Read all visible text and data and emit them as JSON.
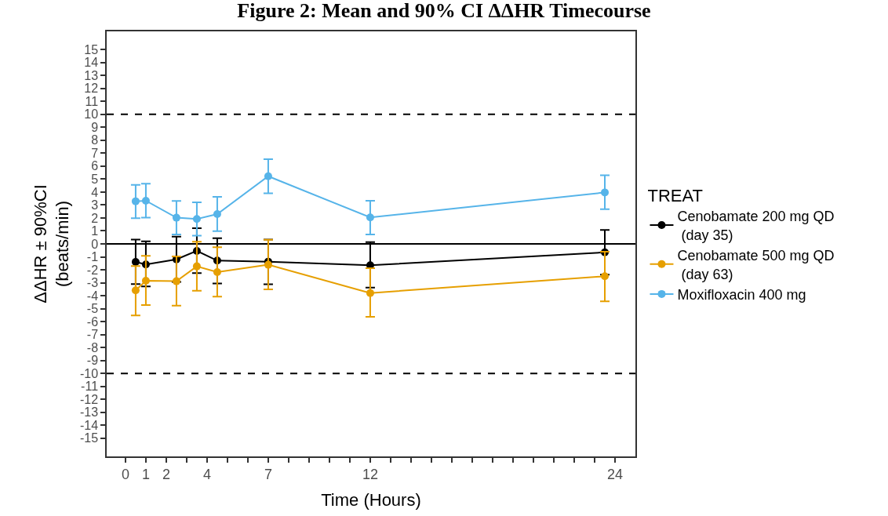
{
  "chart_data": {
    "type": "line",
    "title": "Figure 2: Mean and 90% CI ΔΔHR Timecourse",
    "xlabel": "Time (Hours)",
    "ylabel": "ΔΔHR ± 90%CI\n(beats/min)",
    "legend_title": "TREAT",
    "x": [
      0.5,
      1,
      2.5,
      3.5,
      4.5,
      7,
      12,
      23.5
    ],
    "series": [
      {
        "name": "Cenobamate 200 mg QD\n (day 35)",
        "color": "#000000",
        "values": [
          -1.39,
          -1.59,
          -1.19,
          -0.54,
          -1.29,
          -1.37,
          -1.65,
          -0.65
        ],
        "errors": [
          [
            -3.1,
            0.34
          ],
          [
            -3.29,
            0.2
          ],
          [
            -2.94,
            0.56
          ],
          [
            -2.26,
            1.21
          ],
          [
            -3.06,
            0.44
          ],
          [
            -3.12,
            0.34
          ],
          [
            -3.37,
            0.14
          ],
          [
            -2.38,
            1.07
          ]
        ]
      },
      {
        "name": "Cenobamate 500 mg QD\n (day 63)",
        "color": "#e69f00",
        "values": [
          -3.59,
          -2.84,
          -2.88,
          -1.73,
          -2.18,
          -1.61,
          -3.79,
          -2.5
        ],
        "errors": [
          [
            -5.52,
            -1.71
          ],
          [
            -4.72,
            -0.93
          ],
          [
            -4.76,
            -0.97
          ],
          [
            -3.61,
            0.16
          ],
          [
            -4.07,
            -0.26
          ],
          [
            -3.51,
            0.32
          ],
          [
            -5.63,
            -1.87
          ],
          [
            -4.44,
            -0.6
          ]
        ]
      },
      {
        "name": "Moxifloxacin 400 mg",
        "color": "#56b4e9",
        "values": [
          3.29,
          3.33,
          2.02,
          1.92,
          2.3,
          5.22,
          2.04,
          3.97
        ],
        "errors": [
          [
            1.98,
            4.56
          ],
          [
            2.02,
            4.64
          ],
          [
            0.73,
            3.31
          ],
          [
            0.63,
            3.21
          ],
          [
            0.99,
            3.63
          ],
          [
            3.91,
            6.53
          ],
          [
            0.73,
            3.33
          ],
          [
            2.68,
            5.3
          ]
        ]
      }
    ],
    "xlim": [
      -0.92,
      25.0
    ],
    "xticks": [
      0,
      1,
      2,
      {
        "value": 3,
        "label": null
      },
      4,
      {
        "value": 5,
        "label": null
      },
      {
        "value": 6,
        "label": null
      },
      7,
      {
        "value": 8,
        "label": null
      },
      {
        "value": 9,
        "label": null
      },
      {
        "value": 10,
        "label": null
      },
      {
        "value": 11,
        "label": null
      },
      12,
      {
        "value": 13,
        "label": null
      },
      {
        "value": 14,
        "label": null
      },
      {
        "value": 15,
        "label": null
      },
      {
        "value": 16,
        "label": null
      },
      {
        "value": 17,
        "label": null
      },
      {
        "value": 18,
        "label": null
      },
      {
        "value": 19,
        "label": null
      },
      {
        "value": 20,
        "label": null
      },
      {
        "value": 21,
        "label": null
      },
      {
        "value": 22,
        "label": null
      },
      {
        "value": 23,
        "label": null
      },
      24
    ],
    "ylim": [
      -16.4,
      16.4
    ],
    "yticks": [
      -15,
      -14,
      -13,
      -12,
      -11,
      -10,
      -9,
      -8,
      -7,
      -6,
      -5,
      -4,
      -3,
      -2,
      -1,
      0,
      1,
      2,
      3,
      4,
      5,
      6,
      7,
      8,
      9,
      10,
      11,
      12,
      13,
      14,
      15
    ],
    "ref_lines": [
      {
        "axis": "y",
        "value": 10,
        "line_style": "dashed",
        "color": "#000000"
      },
      {
        "axis": "y",
        "value": -10,
        "line_style": "dashed",
        "color": "#000000"
      },
      {
        "axis": "y",
        "value": 0,
        "line_style": "solid",
        "color": "#000000"
      }
    ],
    "grid": false,
    "legend": "right",
    "marker": "circle",
    "line_style": "solid"
  }
}
